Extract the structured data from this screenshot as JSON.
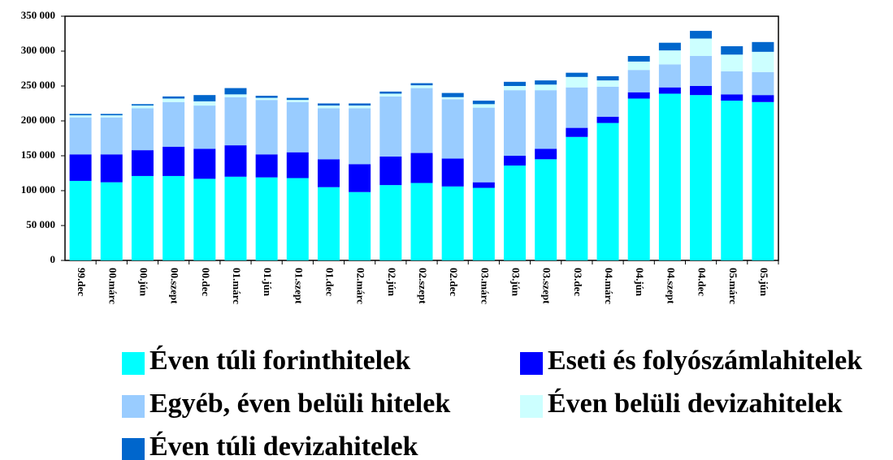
{
  "chart_data": {
    "type": "bar",
    "stacked": true,
    "categories": [
      "99.dec",
      "00.márc",
      "00.jún",
      "00.szept",
      "00.dec",
      "01.márc",
      "01.jún",
      "01.szept",
      "01.dec",
      "02.márc",
      "02.jún",
      "02.szept",
      "02.dec",
      "03.márc",
      "03.jún",
      "03.szept",
      "03.dec",
      "04.márc",
      "04.jún",
      "04.szept",
      "04.dec",
      "05.márc",
      "05.jún"
    ],
    "series": [
      {
        "name": "Éven túli forinthitelek",
        "color": "#00ffff",
        "values": [
          114000,
          112000,
          121000,
          121000,
          117000,
          120000,
          119000,
          118000,
          105000,
          98000,
          108000,
          111000,
          106000,
          104000,
          136000,
          145000,
          177000,
          197000,
          232000,
          239000,
          237000,
          229000,
          227000
        ]
      },
      {
        "name": "Eseti és folyószámlahitelek",
        "color": "#0000ff",
        "values": [
          38000,
          40000,
          37000,
          42000,
          43000,
          45000,
          33000,
          37000,
          40000,
          40000,
          41000,
          43000,
          40000,
          8000,
          14000,
          15000,
          13000,
          9000,
          9000,
          9000,
          13000,
          9000,
          10000
        ]
      },
      {
        "name": "Egyéb, éven belüli hitelek",
        "color": "#99ccff",
        "values": [
          53000,
          53000,
          60000,
          64000,
          62000,
          69000,
          78000,
          72000,
          73000,
          80000,
          86000,
          93000,
          85000,
          107000,
          94000,
          84000,
          58000,
          43000,
          32000,
          33000,
          43000,
          33000,
          33000
        ]
      },
      {
        "name": "Éven belüli devizahitelek",
        "color": "#ccffff",
        "values": [
          3000,
          3000,
          4000,
          5000,
          6000,
          4000,
          3000,
          3000,
          4000,
          4000,
          4000,
          4000,
          3000,
          5000,
          6000,
          8000,
          15000,
          9000,
          12000,
          20000,
          25000,
          24000,
          29000
        ]
      },
      {
        "name": "Éven túli devizahitelek",
        "color": "#0066cc",
        "values": [
          2000,
          2000,
          2000,
          3000,
          9000,
          9000,
          3000,
          3000,
          3000,
          3000,
          3000,
          3000,
          6000,
          5000,
          6000,
          6000,
          6000,
          6000,
          8000,
          11000,
          11000,
          12000,
          14000
        ]
      }
    ],
    "ylim": [
      0,
      350000
    ],
    "yticks": [
      0,
      {
        "value": 50000,
        "label": "50 000"
      },
      {
        "value": 100000,
        "label": "100 000"
      },
      {
        "value": 150000,
        "label": "150 000"
      },
      {
        "value": 200000,
        "label": "200 000"
      },
      {
        "value": 250000,
        "label": "250 000"
      },
      {
        "value": 300000,
        "label": "300 000"
      },
      {
        "value": 350000,
        "label": "350 000"
      }
    ],
    "grid": false,
    "legend": "bottom"
  }
}
